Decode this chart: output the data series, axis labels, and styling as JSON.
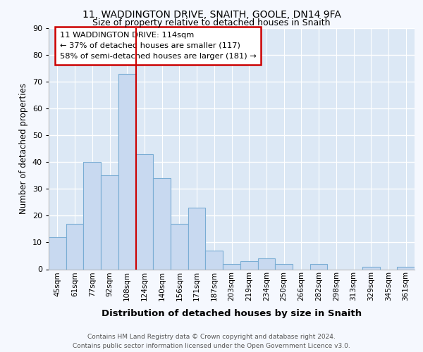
{
  "title1": "11, WADDINGTON DRIVE, SNAITH, GOOLE, DN14 9FA",
  "title2": "Size of property relative to detached houses in Snaith",
  "xlabel": "Distribution of detached houses by size in Snaith",
  "ylabel": "Number of detached properties",
  "categories": [
    "45sqm",
    "61sqm",
    "77sqm",
    "92sqm",
    "108sqm",
    "124sqm",
    "140sqm",
    "156sqm",
    "171sqm",
    "187sqm",
    "203sqm",
    "219sqm",
    "234sqm",
    "250sqm",
    "266sqm",
    "282sqm",
    "298sqm",
    "313sqm",
    "329sqm",
    "345sqm",
    "361sqm"
  ],
  "values": [
    12,
    17,
    40,
    35,
    73,
    43,
    34,
    17,
    23,
    7,
    2,
    3,
    4,
    2,
    0,
    2,
    0,
    0,
    1,
    0,
    1
  ],
  "bar_color": "#c8d9f0",
  "bar_edge_color": "#7aadd4",
  "highlight_index": 4,
  "highlight_color": "#cc0000",
  "annotation_text": "11 WADDINGTON DRIVE: 114sqm\n← 37% of detached houses are smaller (117)\n58% of semi-detached houses are larger (181) →",
  "annotation_box_color": "#ffffff",
  "annotation_box_edge": "#cc0000",
  "plot_bg_color": "#dce8f5",
  "fig_bg_color": "#f5f8fe",
  "footer1": "Contains HM Land Registry data © Crown copyright and database right 2024.",
  "footer2": "Contains public sector information licensed under the Open Government Licence v3.0.",
  "ylim": [
    0,
    90
  ],
  "yticks": [
    0,
    10,
    20,
    30,
    40,
    50,
    60,
    70,
    80,
    90
  ]
}
